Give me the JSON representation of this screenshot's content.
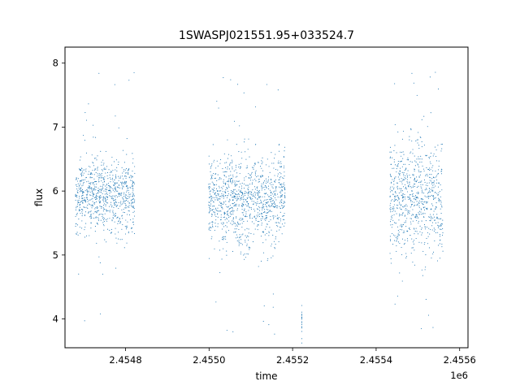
{
  "chart_data": {
    "type": "scatter",
    "title": "1SWASPJ021551.95+033524.7",
    "xlabel": "time",
    "ylabel": "flux",
    "x_offset_label": "1e6",
    "x_ticks": [
      2454800,
      2455000,
      2455200,
      2455400,
      2455600
    ],
    "x_tick_labels": [
      "2.4548",
      "2.4550",
      "2.4552",
      "2.4554",
      "2.4556"
    ],
    "y_ticks": [
      4,
      5,
      6,
      7,
      8
    ],
    "y_tick_labels": [
      "4",
      "5",
      "6",
      "7",
      "8"
    ],
    "xlim": [
      2454655,
      2455620
    ],
    "ylim": [
      3.55,
      8.25
    ],
    "grid": false,
    "color": "#1f77b4",
    "series": [
      {
        "segments": [
          {
            "t_start": 2454680,
            "t_end": 2454822,
            "flux_center": 5.92,
            "scatter": 0.28
          },
          {
            "t_start": 2454999,
            "t_end": 2455182,
            "flux_center": 5.85,
            "scatter": 0.35
          },
          {
            "t_start": 2455222,
            "t_end": 2455222,
            "flux_center": 3.95,
            "scatter": 0.15
          },
          {
            "t_start": 2455433,
            "t_end": 2455560,
            "flux_center": 5.85,
            "scatter": 0.45
          }
        ]
      }
    ]
  }
}
